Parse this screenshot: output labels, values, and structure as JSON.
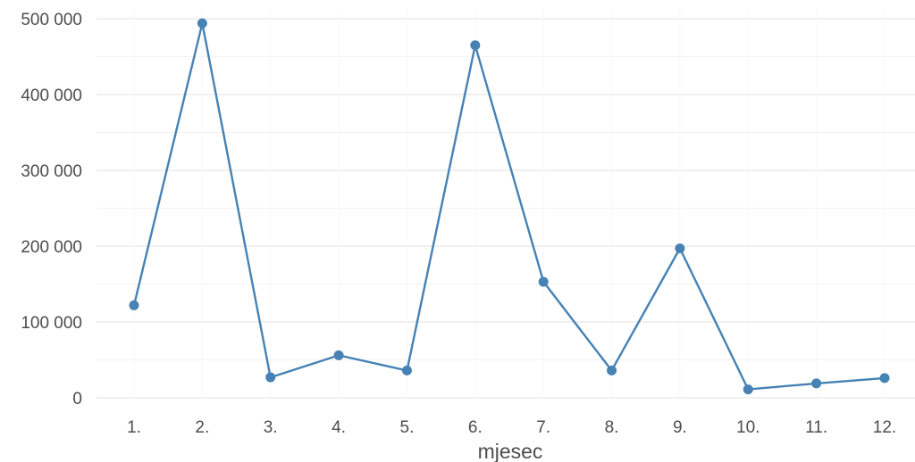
{
  "chart_data": {
    "type": "line",
    "title": "",
    "xlabel": "mjesec",
    "ylabel": "",
    "categories": [
      "1.",
      "2.",
      "3.",
      "4.",
      "5.",
      "6.",
      "7.",
      "8.",
      "9.",
      "10.",
      "11.",
      "12."
    ],
    "series": [
      {
        "values": [
          122000,
          494000,
          27000,
          56000,
          36000,
          465000,
          153000,
          36000,
          197000,
          11000,
          19000,
          26000
        ]
      }
    ],
    "ylim": [
      0,
      500000
    ],
    "yticks": [
      0,
      100000,
      200000,
      300000,
      400000,
      500000
    ],
    "ytick_labels": [
      "0",
      "100 000",
      "200 000",
      "300 000",
      "400 000",
      "500 000"
    ],
    "grid": true,
    "line_color": "#4682b4",
    "gridline_color": "#ebebeb"
  }
}
